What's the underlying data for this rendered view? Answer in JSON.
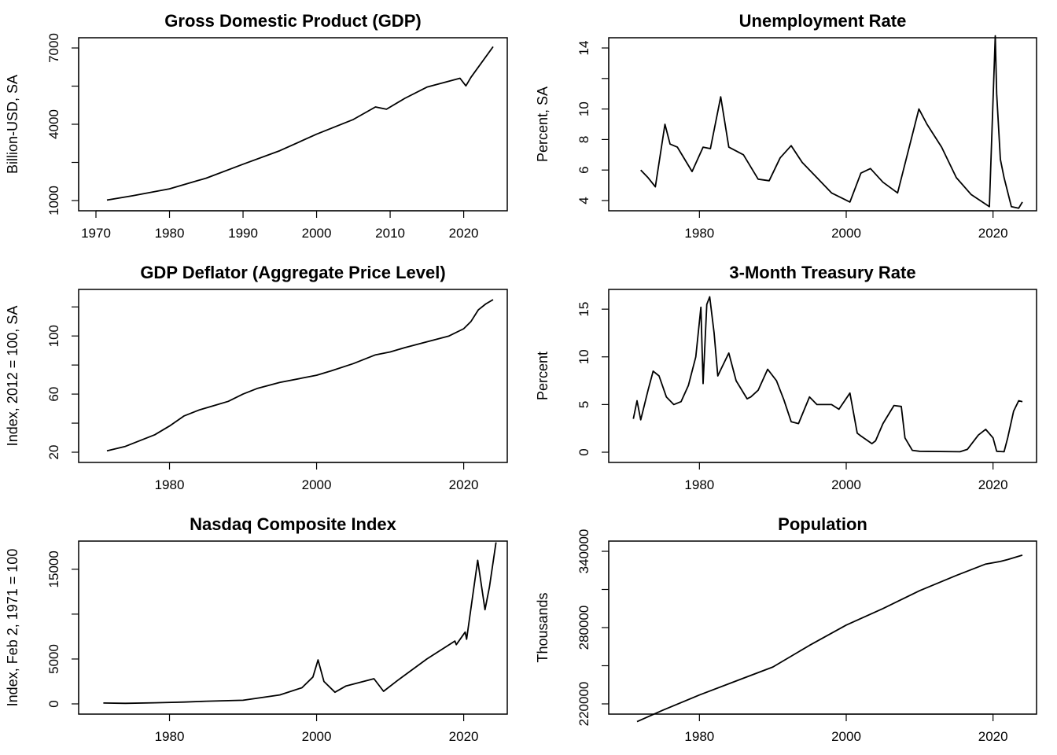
{
  "chart_data": [
    {
      "type": "line",
      "title": "Gross Domestic Product (GDP)",
      "ylabel": "Billion-USD, SA",
      "xlim": [
        1970,
        2024
      ],
      "ylim": [
        1000,
        7000
      ],
      "xticks": [
        1970,
        1980,
        1990,
        2000,
        2010,
        2020
      ],
      "yticks": [
        1000,
        2500,
        4000,
        5500,
        7000
      ],
      "ytick_labels": [
        "1000",
        "",
        "4000",
        "",
        "7000"
      ],
      "x": [
        1971.5,
        1975,
        1980,
        1985,
        1990,
        1995,
        2000,
        2005,
        2008,
        2009.5,
        2012,
        2015,
        2019.5,
        2020.3,
        2021,
        2024
      ],
      "values": [
        1020,
        1190,
        1460,
        1880,
        2430,
        2960,
        3610,
        4190,
        4680,
        4590,
        5020,
        5460,
        5810,
        5510,
        5850,
        7050
      ]
    },
    {
      "type": "line",
      "title": "Unemployment Rate",
      "ylabel": "Percent, SA",
      "xlim": [
        1970,
        2024
      ],
      "ylim": [
        4,
        14
      ],
      "xticks": [
        1980,
        2000,
        2020
      ],
      "yticks": [
        4,
        6,
        8,
        10,
        12,
        14
      ],
      "ytick_labels": [
        "4",
        "6",
        "8",
        "10",
        "",
        "14"
      ],
      "x": [
        1972,
        1973,
        1974,
        1975.3,
        1976,
        1977,
        1979,
        1980.5,
        1981.5,
        1982.9,
        1984,
        1986,
        1988,
        1989.5,
        1991,
        1992.5,
        1994,
        1996,
        1998,
        2000.5,
        2002,
        2003.3,
        2005,
        2007,
        2009.9,
        2011,
        2013,
        2015,
        2017,
        2019.5,
        2020.3,
        2020.5,
        2021,
        2021.5,
        2022.5,
        2023.5,
        2024
      ],
      "values": [
        6.0,
        5.5,
        4.9,
        9.0,
        7.7,
        7.5,
        5.9,
        7.5,
        7.4,
        10.8,
        7.5,
        7.0,
        5.4,
        5.3,
        6.8,
        7.6,
        6.5,
        5.5,
        4.5,
        3.9,
        5.8,
        6.1,
        5.2,
        4.5,
        10.0,
        9.0,
        7.5,
        5.5,
        4.4,
        3.6,
        14.8,
        11.0,
        6.7,
        5.5,
        3.6,
        3.5,
        3.9
      ]
    },
    {
      "type": "line",
      "title": "GDP Deflator (Aggregate Price Level)",
      "ylabel": "Index, 2012 = 100, SA",
      "xlim": [
        1970,
        2024
      ],
      "ylim": [
        20,
        125
      ],
      "xticks": [
        1980,
        2000,
        2020
      ],
      "yticks": [
        20,
        40,
        60,
        80,
        100,
        120
      ],
      "ytick_labels": [
        "20",
        "",
        "60",
        "",
        "100",
        ""
      ],
      "x": [
        1971.5,
        1974,
        1976,
        1978,
        1980,
        1982,
        1984,
        1986,
        1988,
        1990,
        1992,
        1995,
        1998,
        2000,
        2002,
        2005,
        2008,
        2010,
        2012,
        2015,
        2018,
        2020,
        2021,
        2022,
        2023,
        2024
      ],
      "values": [
        21,
        24,
        28,
        32,
        38,
        45,
        49,
        52,
        55,
        60,
        64,
        68,
        71,
        73,
        76,
        81,
        87,
        89,
        92,
        96,
        100,
        105,
        110,
        118,
        122,
        125
      ]
    },
    {
      "type": "line",
      "title": "3-Month Treasury Rate",
      "ylabel": "Percent",
      "xlim": [
        1970,
        2024
      ],
      "ylim": [
        0,
        16
      ],
      "xticks": [
        1980,
        2000,
        2020
      ],
      "yticks": [
        0,
        5,
        10,
        15
      ],
      "ytick_labels": [
        "0",
        "5",
        "10",
        "15"
      ],
      "x": [
        1971,
        1971.5,
        1972,
        1973,
        1973.7,
        1974.5,
        1975.5,
        1976.5,
        1977.5,
        1978.5,
        1979.5,
        1980.2,
        1980.5,
        1981,
        1981.4,
        1982,
        1982.5,
        1983,
        1984,
        1985,
        1986.5,
        1987,
        1988,
        1989.3,
        1990.5,
        1991.5,
        1992.5,
        1993.5,
        1995,
        1996,
        1998,
        1999,
        2000.5,
        2001.5,
        2002,
        2003.5,
        2004,
        2005,
        2006.5,
        2007.5,
        2008,
        2009,
        2010,
        2015.5,
        2016.5,
        2018,
        2019,
        2020,
        2020.5,
        2021.5,
        2022,
        2022.8,
        2023.5,
        2024
      ],
      "values": [
        3.5,
        5.4,
        3.4,
        6.5,
        8.5,
        8.0,
        5.8,
        5.0,
        5.3,
        7.0,
        10.0,
        15.2,
        7.2,
        15.5,
        16.3,
        12.5,
        8.0,
        8.8,
        10.4,
        7.5,
        5.6,
        5.8,
        6.5,
        8.7,
        7.5,
        5.5,
        3.2,
        3.0,
        5.8,
        5.0,
        5.0,
        4.5,
        6.2,
        2.0,
        1.7,
        0.9,
        1.2,
        3.0,
        4.9,
        4.8,
        1.5,
        0.2,
        0.1,
        0.05,
        0.3,
        1.8,
        2.4,
        1.5,
        0.1,
        0.05,
        1.5,
        4.3,
        5.4,
        5.3
      ]
    },
    {
      "type": "line",
      "title": "Nasdaq Composite Index",
      "ylabel": "Index, Feb 2, 1971 = 100",
      "xlim": [
        1970,
        2024
      ],
      "ylim": [
        0,
        17000
      ],
      "xticks": [
        1980,
        2000,
        2020
      ],
      "yticks": [
        0,
        5000,
        10000,
        15000
      ],
      "ytick_labels": [
        "0",
        "5000",
        "",
        "15000"
      ],
      "x": [
        1971,
        1974,
        1978,
        1982,
        1985,
        1990,
        1995,
        1998,
        1999.5,
        2000.2,
        2001,
        2002.5,
        2004,
        2007.8,
        2009.1,
        2011,
        2015,
        2018.8,
        2019,
        2020.2,
        2020.4,
        2021.9,
        2022.9,
        2023.5,
        2024.4
      ],
      "values": [
        100,
        60,
        120,
        200,
        300,
        400,
        1000,
        1800,
        3000,
        4900,
        2500,
        1300,
        2000,
        2800,
        1400,
        2600,
        5000,
        7000,
        6600,
        8000,
        7200,
        16000,
        10500,
        13000,
        18000
      ]
    },
    {
      "type": "line",
      "title": "Population",
      "ylabel": "Thousands",
      "xlim": [
        1970,
        2024
      ],
      "ylim": [
        220000,
        340000
      ],
      "xticks": [
        1980,
        2000,
        2020
      ],
      "yticks": [
        220000,
        250000,
        280000,
        310000,
        340000
      ],
      "ytick_labels": [
        "220000",
        "",
        "280000",
        "",
        "340000"
      ],
      "x": [
        1971.5,
        1975,
        1980,
        1985,
        1990,
        1995,
        2000,
        2005,
        2010,
        2015,
        2019,
        2021,
        2022,
        2024
      ],
      "values": [
        206000,
        215000,
        227000,
        238000,
        249000,
        266000,
        282000,
        295000,
        309000,
        321000,
        330000,
        332000,
        333500,
        337000
      ]
    }
  ]
}
